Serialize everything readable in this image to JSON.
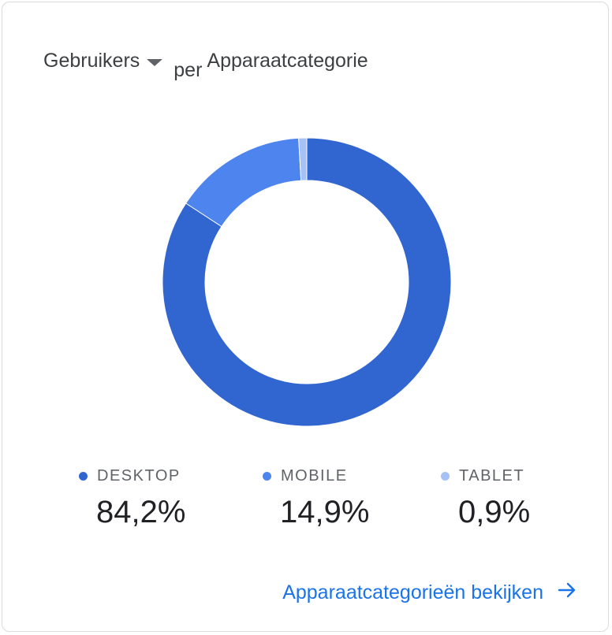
{
  "header": {
    "metric_label": "Gebruikers",
    "per_label": "per",
    "dimension_label": "Apparaatcategorie"
  },
  "chart_data": {
    "type": "pie",
    "donut": true,
    "categories": [
      "DESKTOP",
      "MOBILE",
      "TABLET"
    ],
    "values": [
      84.2,
      14.9,
      0.9
    ],
    "value_labels": [
      "84,2%",
      "14,9%",
      "0,9%"
    ],
    "colors": [
      "#3166d0",
      "#4e84ee",
      "#a5c1f6"
    ],
    "legend_position": "bottom"
  },
  "footer": {
    "link_label": "Apparaatcategorieën bekijken",
    "link_icon": "arrow-right-icon"
  }
}
